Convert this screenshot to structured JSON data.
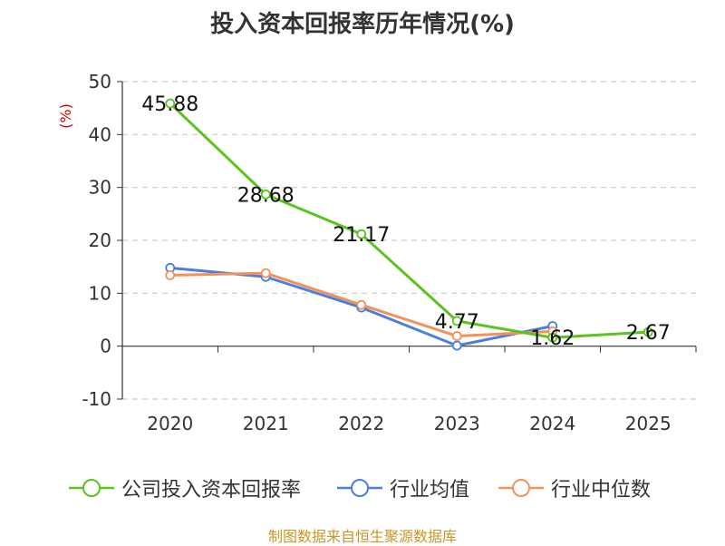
{
  "title": "投入资本回报率历年情况(%)",
  "source": "制图数据来自恒生聚源数据库",
  "colors": {
    "company": "#5ac31e",
    "industry_avg": "#4a7fe0",
    "industry_median": "#f4915a",
    "grid": "#cccccc",
    "axis": "#333333",
    "ylabel": "#cc0000"
  },
  "chart_data": {
    "type": "line",
    "title": "投入资本回报率历年情况(%)",
    "xlabel": "",
    "ylabel": "(%)",
    "ylim": [
      -10,
      50
    ],
    "yticks": [
      -10,
      0,
      10,
      20,
      30,
      40,
      50
    ],
    "categories": [
      "2020",
      "2021",
      "2022",
      "2023",
      "2024",
      "2025"
    ],
    "series": [
      {
        "key": "company",
        "name": "公司投入资本回报率",
        "values": [
          45.88,
          28.68,
          21.17,
          4.77,
          1.62,
          2.67
        ],
        "labels": [
          "45.88",
          "28.68",
          "21.17",
          "4.77",
          "1.62",
          "2.67"
        ]
      },
      {
        "key": "industry_avg",
        "name": "行业均值",
        "values": [
          14.8,
          13.1,
          7.3,
          0.1,
          3.8,
          null
        ]
      },
      {
        "key": "industry_median",
        "name": "行业中位数",
        "values": [
          13.4,
          13.8,
          7.8,
          1.9,
          2.8,
          null
        ]
      }
    ],
    "grid": true,
    "legend": "bottom"
  }
}
